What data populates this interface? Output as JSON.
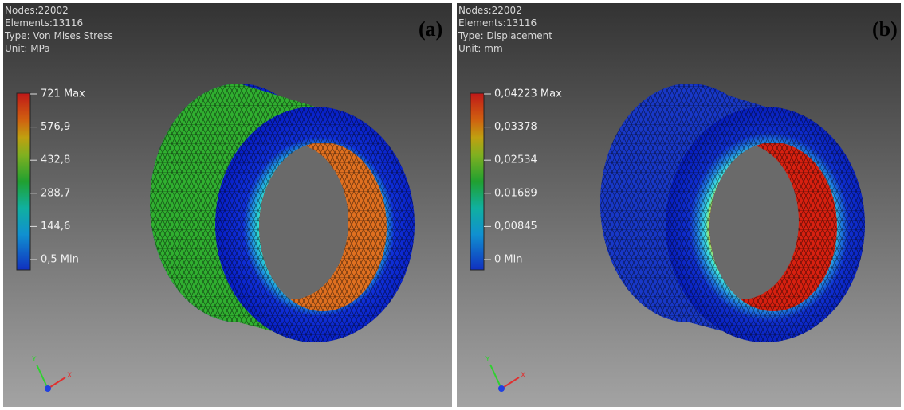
{
  "panels": [
    {
      "info": [
        "Nodes:22002",
        "Elements:13116",
        "Type: Von Mises Stress",
        "Unit: MPa"
      ],
      "label": "(a)",
      "legend": [
        "721 Max",
        "576,9",
        "432,8",
        "288,7",
        "144,6",
        "0,5 Min"
      ],
      "axes": [
        "Y",
        "X"
      ]
    },
    {
      "info": [
        "Nodes:22002",
        "Elements:13116",
        "Type: Displacement",
        "Unit: mm"
      ],
      "label": "(b)",
      "legend": [
        "0,04223 Max",
        "0,03378",
        "0,02534",
        "0,01689",
        "0,00845",
        "0 Min"
      ],
      "axes": [
        "Y",
        "X"
      ]
    }
  ]
}
